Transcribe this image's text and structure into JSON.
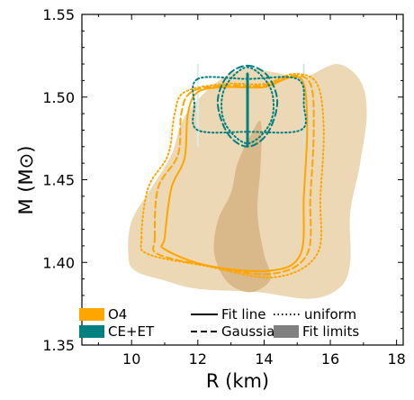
{
  "chart_data": {
    "type": "area",
    "xlabel": "R (km)",
    "ylabel": "M (M⊙)",
    "xlim": [
      8.5,
      18.2
    ],
    "ylim": [
      1.35,
      1.55
    ],
    "xticks": [
      10,
      12,
      14,
      16,
      18
    ],
    "yticks": [
      1.35,
      1.4,
      1.45,
      1.5,
      1.55
    ],
    "xtick_labels": [
      "10",
      "12",
      "14",
      "16",
      "18"
    ],
    "ytick_labels": [
      "1.35",
      "1.40",
      "1.45",
      "1.50",
      "1.55"
    ],
    "grid": false,
    "legend_position": "bottom",
    "colors": {
      "O4": "#ffa500",
      "CE+ET": "#008080",
      "fit_limits": "#808080",
      "fill_light": "#ecd8b4",
      "fill_dark": "#d9b889"
    },
    "legend": [
      {
        "label": "O4",
        "kind": "patch",
        "color": "#ffa500"
      },
      {
        "label": "CE+ET",
        "kind": "patch",
        "color": "#008080"
      },
      {
        "label": "Fit line",
        "kind": "line",
        "style": "solid"
      },
      {
        "label": "Gaussian",
        "kind": "line",
        "style": "dashed"
      },
      {
        "label": "uniform",
        "kind": "line",
        "style": "dotted"
      },
      {
        "label": "Fit limits",
        "kind": "patch",
        "color": "#808080"
      }
    ],
    "fit_limits_regions": [
      {
        "name": "Fit limits O4",
        "color": "#ecd8b4",
        "points": [
          [
            9.9,
            1.405
          ],
          [
            10.0,
            1.425
          ],
          [
            10.6,
            1.445
          ],
          [
            11.2,
            1.465
          ],
          [
            11.6,
            1.488
          ],
          [
            12.5,
            1.508
          ],
          [
            13.4,
            1.517
          ],
          [
            14.3,
            1.515
          ],
          [
            15.2,
            1.512
          ],
          [
            16.2,
            1.52
          ],
          [
            16.9,
            1.51
          ],
          [
            17.1,
            1.49
          ],
          [
            16.9,
            1.46
          ],
          [
            16.6,
            1.43
          ],
          [
            16.6,
            1.4
          ],
          [
            16.3,
            1.385
          ],
          [
            15.4,
            1.378
          ],
          [
            13.8,
            1.382
          ],
          [
            12.0,
            1.384
          ],
          [
            11.0,
            1.389
          ],
          [
            10.1,
            1.395
          ]
        ]
      },
      {
        "name": "Fit limits O4 core",
        "color": "#d9b889",
        "points": [
          [
            12.5,
            1.405
          ],
          [
            12.6,
            1.425
          ],
          [
            13.0,
            1.442
          ],
          [
            13.2,
            1.46
          ],
          [
            13.6,
            1.477
          ],
          [
            13.9,
            1.485
          ],
          [
            13.9,
            1.46
          ],
          [
            13.8,
            1.43
          ],
          [
            14.0,
            1.405
          ],
          [
            14.2,
            1.39
          ],
          [
            13.6,
            1.382
          ],
          [
            12.9,
            1.388
          ]
        ]
      }
    ],
    "series": [
      {
        "name": "O4 Fit line",
        "color": "#ffa500",
        "style": "solid",
        "points": [
          [
            11.0,
            1.415
          ],
          [
            11.2,
            1.445
          ],
          [
            11.6,
            1.463
          ],
          [
            11.7,
            1.49
          ],
          [
            12.0,
            1.503
          ],
          [
            12.8,
            1.506
          ],
          [
            14.0,
            1.506
          ],
          [
            14.8,
            1.512
          ],
          [
            15.2,
            1.508
          ],
          [
            15.3,
            1.48
          ],
          [
            15.2,
            1.44
          ],
          [
            15.1,
            1.405
          ],
          [
            14.2,
            1.395
          ],
          [
            12.3,
            1.398
          ],
          [
            11.0,
            1.408
          ]
        ]
      },
      {
        "name": "O4 Gaussian",
        "color": "#ffa500",
        "style": "dashed",
        "points": [
          [
            10.7,
            1.415
          ],
          [
            10.8,
            1.445
          ],
          [
            11.4,
            1.465
          ],
          [
            11.5,
            1.49
          ],
          [
            11.8,
            1.503
          ],
          [
            12.8,
            1.507
          ],
          [
            14.0,
            1.507
          ],
          [
            14.8,
            1.513
          ],
          [
            15.4,
            1.508
          ],
          [
            15.5,
            1.48
          ],
          [
            15.4,
            1.44
          ],
          [
            15.3,
            1.405
          ],
          [
            14.2,
            1.393
          ],
          [
            12.3,
            1.398
          ],
          [
            10.8,
            1.405
          ]
        ]
      },
      {
        "name": "O4 uniform",
        "color": "#ffa500",
        "style": "dotted",
        "points": [
          [
            10.3,
            1.415
          ],
          [
            10.5,
            1.445
          ],
          [
            11.1,
            1.465
          ],
          [
            11.3,
            1.49
          ],
          [
            11.6,
            1.503
          ],
          [
            12.8,
            1.508
          ],
          [
            14.0,
            1.508
          ],
          [
            14.9,
            1.514
          ],
          [
            15.6,
            1.508
          ],
          [
            15.8,
            1.48
          ],
          [
            15.7,
            1.44
          ],
          [
            15.6,
            1.405
          ],
          [
            14.3,
            1.391
          ],
          [
            12.2,
            1.398
          ],
          [
            10.5,
            1.405
          ]
        ]
      },
      {
        "name": "CE+ET Fit line",
        "color": "#008080",
        "style": "solid",
        "points": [
          [
            13.5,
            1.471
          ],
          [
            13.5,
            1.514
          ]
        ]
      },
      {
        "name": "CE+ET Gaussian",
        "color": "#008080",
        "style": "dashed",
        "points": [
          [
            13.5,
            1.519
          ],
          [
            14.1,
            1.513
          ],
          [
            14.4,
            1.497
          ],
          [
            14.1,
            1.478
          ],
          [
            13.5,
            1.47
          ],
          [
            12.9,
            1.478
          ],
          [
            12.6,
            1.497
          ],
          [
            12.9,
            1.513
          ]
        ]
      },
      {
        "name": "CE+ET uniform",
        "color": "#008080",
        "style": "dotted",
        "points": [
          [
            12.0,
            1.511
          ],
          [
            13.5,
            1.511
          ],
          [
            15.0,
            1.511
          ],
          [
            15.2,
            1.495
          ],
          [
            15.1,
            1.48
          ],
          [
            13.5,
            1.479
          ],
          [
            12.0,
            1.48
          ],
          [
            11.9,
            1.495
          ]
        ]
      },
      {
        "name": "CE+ET uniform inner",
        "color": "#008080",
        "style": "dotted",
        "points": [
          [
            12.8,
            1.505
          ],
          [
            13.5,
            1.518
          ],
          [
            14.2,
            1.505
          ],
          [
            14.2,
            1.485
          ],
          [
            13.5,
            1.472
          ],
          [
            12.8,
            1.485
          ]
        ]
      }
    ],
    "vertical_limits": [
      {
        "x": 12.0,
        "y": [
          1.47,
          1.52
        ],
        "color": "#d8eceb"
      },
      {
        "x": 15.2,
        "y": [
          1.47,
          1.52
        ],
        "color": "#cfe3e2"
      }
    ]
  }
}
